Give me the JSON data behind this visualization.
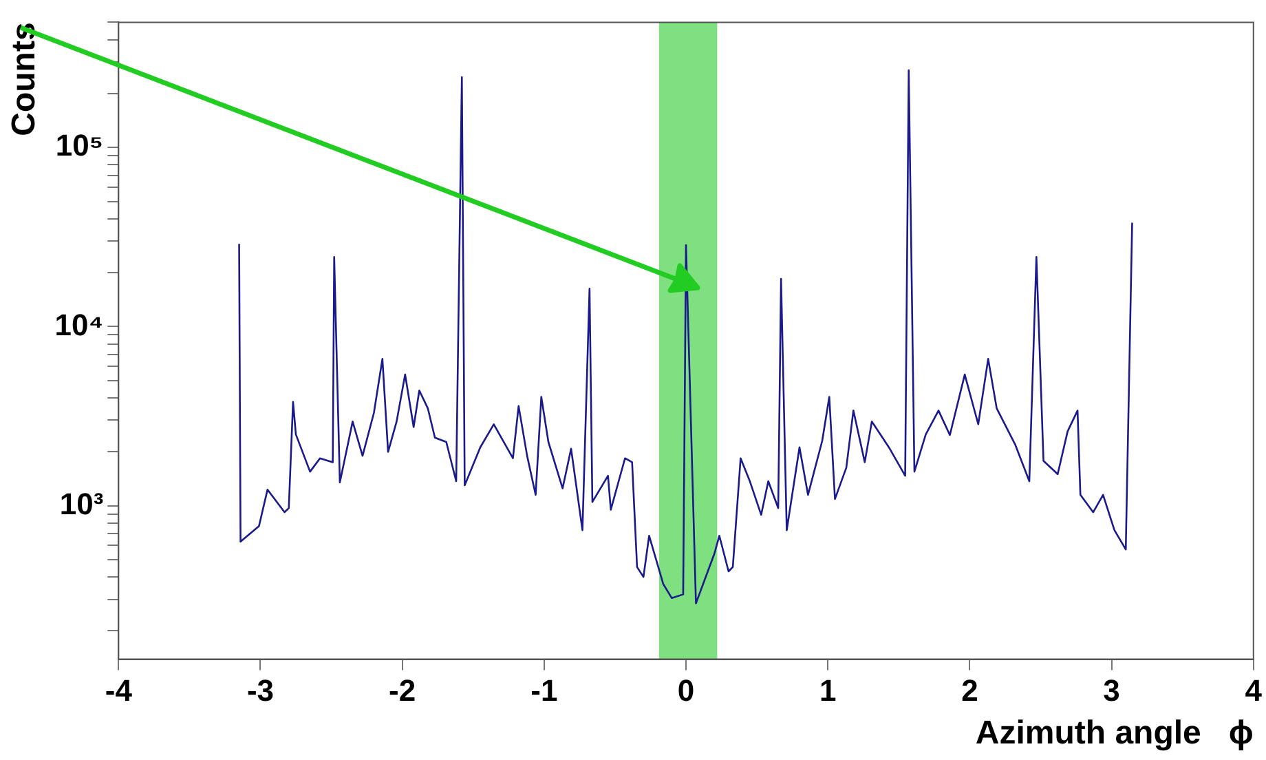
{
  "chart_data": {
    "type": "line",
    "xlabel": "Azimuth angle   ϕ",
    "ylabel": "Counts",
    "log": "y",
    "grid": false,
    "legend": false,
    "marker": "none",
    "line_style": "solid",
    "xlim": [
      -4,
      4
    ],
    "xticks": [
      -4,
      -3,
      -2,
      -1,
      0,
      1,
      2,
      3,
      4
    ],
    "ylim": [
      139,
      500000
    ],
    "yticks": [
      {
        "value": 200,
        "label": null
      },
      {
        "value": 300,
        "label": null
      },
      {
        "value": 400,
        "label": null
      },
      {
        "value": 500,
        "label": null
      },
      {
        "value": 600,
        "label": null
      },
      {
        "value": 700,
        "label": null
      },
      {
        "value": 800,
        "label": null
      },
      {
        "value": 900,
        "label": null
      },
      {
        "value": 1000,
        "label": "10³"
      },
      {
        "value": 2000,
        "label": null
      },
      {
        "value": 3000,
        "label": null
      },
      {
        "value": 4000,
        "label": null
      },
      {
        "value": 5000,
        "label": null
      },
      {
        "value": 6000,
        "label": null
      },
      {
        "value": 7000,
        "label": null
      },
      {
        "value": 8000,
        "label": null
      },
      {
        "value": 9000,
        "label": null
      },
      {
        "value": 10000,
        "label": "10⁴"
      },
      {
        "value": 20000,
        "label": null
      },
      {
        "value": 30000,
        "label": null
      },
      {
        "value": 40000,
        "label": null
      },
      {
        "value": 50000,
        "label": null
      },
      {
        "value": 60000,
        "label": null
      },
      {
        "value": 70000,
        "label": null
      },
      {
        "value": 80000,
        "label": null
      },
      {
        "value": 90000,
        "label": null
      },
      {
        "value": 100000,
        "label": "10⁵"
      },
      {
        "value": 200000,
        "label": null
      },
      {
        "value": 300000,
        "label": null
      },
      {
        "value": 400000,
        "label": null
      },
      {
        "value": 500000,
        "label": null
      }
    ],
    "bands": [
      {
        "axis": "x",
        "from": -0.19,
        "to": 0.22,
        "color": "#7ee07e"
      }
    ],
    "series": [
      {
        "color": "#1a1a8c",
        "x": [
          -3.15,
          -3.14,
          -3.01,
          -2.95,
          -2.83,
          -2.8,
          -2.77,
          -2.75,
          -2.65,
          -2.58,
          -2.49,
          -2.48,
          -2.44,
          -2.35,
          -2.28,
          -2.2,
          -2.14,
          -2.1,
          -2.04,
          -1.98,
          -1.92,
          -1.88,
          -1.82,
          -1.77,
          -1.69,
          -1.62,
          -1.58,
          -1.56,
          -1.45,
          -1.355,
          -1.22,
          -1.18,
          -1.12,
          -1.06,
          -1.02,
          -0.97,
          -0.87,
          -0.81,
          -0.73,
          -0.68,
          -0.66,
          -0.55,
          -0.53,
          -0.43,
          -0.38,
          -0.345,
          -0.3,
          -0.26,
          -0.16,
          -0.1,
          -0.02,
          0,
          0.07,
          0.2,
          0.235,
          0.3,
          0.33,
          0.385,
          0.45,
          0.53,
          0.58,
          0.65,
          0.67,
          0.71,
          0.8,
          0.86,
          0.96,
          1.01,
          1.05,
          1.13,
          1.18,
          1.26,
          1.31,
          1.43,
          1.545,
          1.57,
          1.61,
          1.69,
          1.78,
          1.86,
          1.965,
          2.06,
          2.13,
          2.19,
          2.32,
          2.42,
          2.47,
          2.52,
          2.62,
          2.69,
          2.76,
          2.78,
          2.87,
          2.94,
          3.02,
          3.1,
          3.145
        ],
        "values": [
          29000,
          630,
          770,
          1230,
          920,
          970,
          3800,
          2500,
          1550,
          1840,
          1750,
          24500,
          1350,
          2950,
          1900,
          3300,
          6600,
          2000,
          2950,
          5400,
          2750,
          4400,
          3500,
          2400,
          2270,
          1370,
          247000,
          1300,
          2120,
          2850,
          1840,
          3600,
          1900,
          1150,
          4050,
          2270,
          1250,
          2080,
          730,
          16300,
          1050,
          1470,
          950,
          1840,
          1750,
          455,
          400,
          680,
          365,
          305,
          320,
          28500,
          285,
          540,
          680,
          430,
          455,
          1840,
          1370,
          890,
          1370,
          970,
          18500,
          730,
          2120,
          1150,
          2300,
          4050,
          1090,
          1630,
          3400,
          1750,
          2950,
          2120,
          1470,
          270000,
          1550,
          2500,
          3400,
          2480,
          5400,
          2850,
          6600,
          3500,
          2200,
          1370,
          24500,
          1780,
          1500,
          2600,
          3400,
          1150,
          920,
          1150,
          730,
          570,
          38000
        ]
      }
    ]
  }
}
